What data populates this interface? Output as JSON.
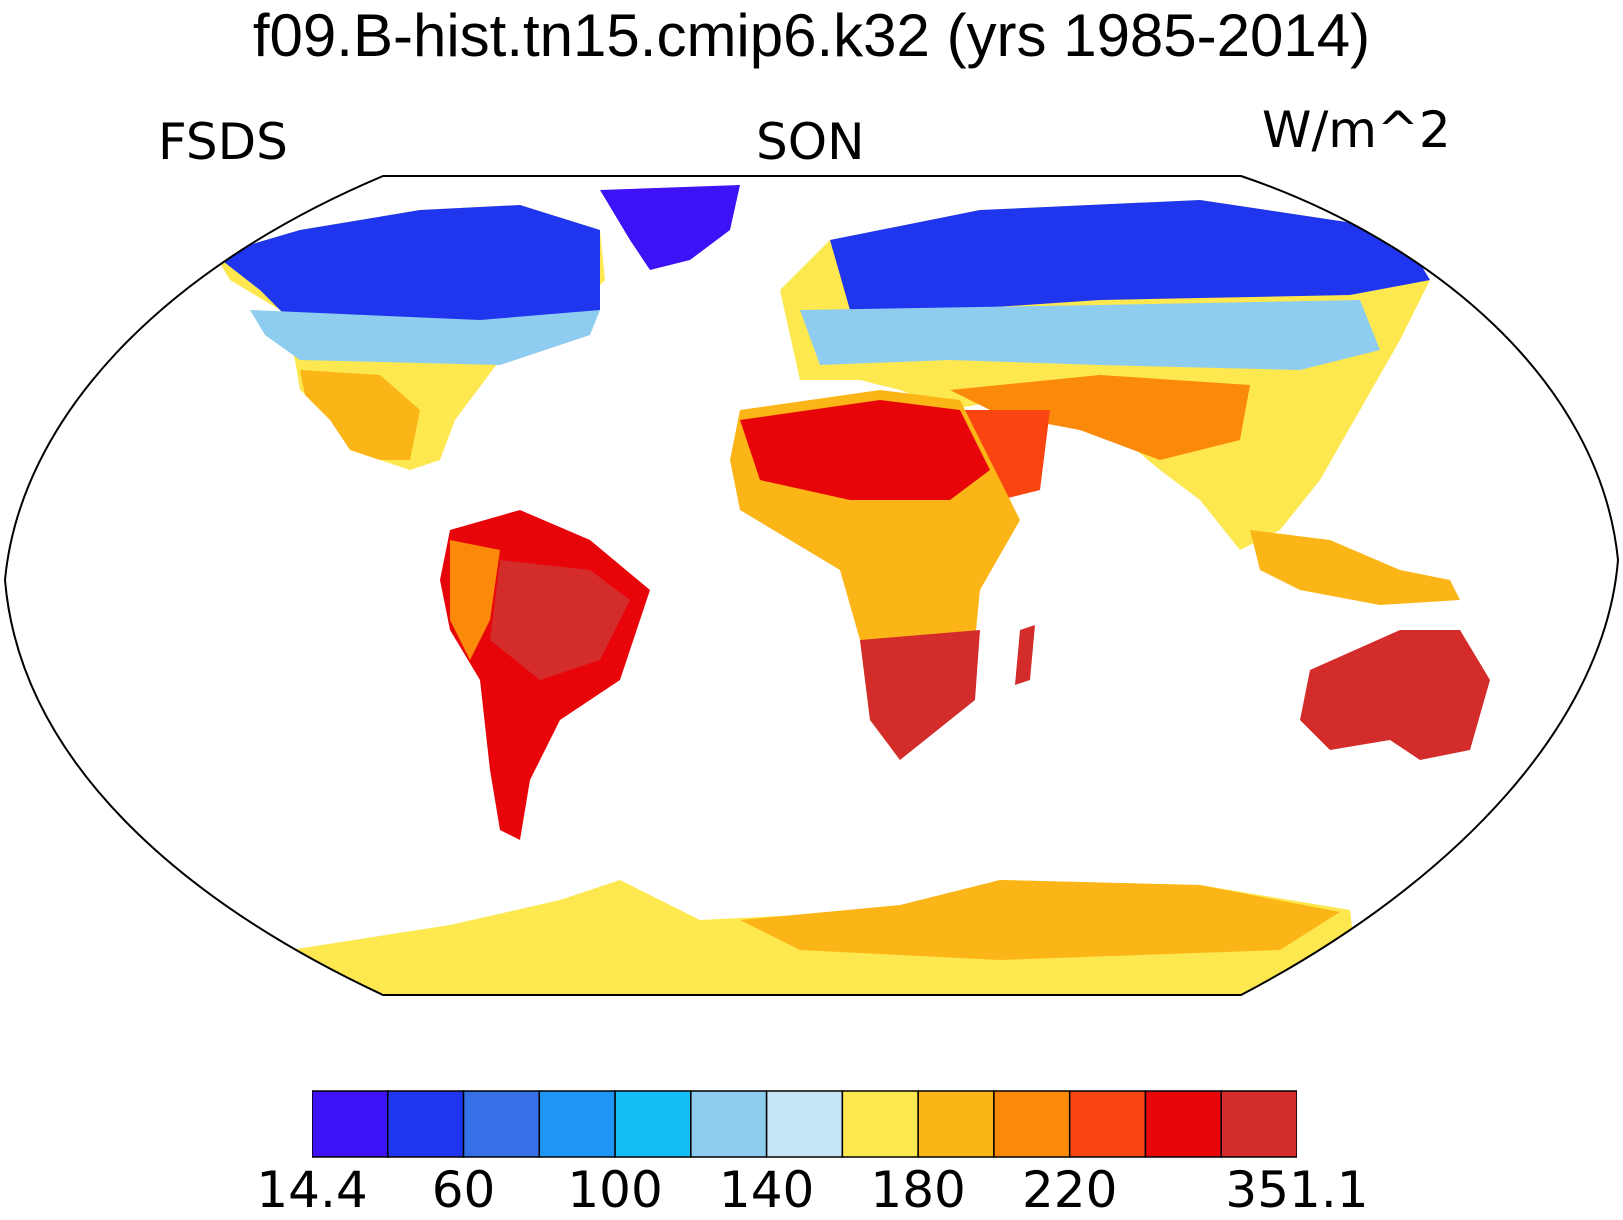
{
  "title": "f09.B-hist.tn15.cmip6.k32 (yrs 1985-2014)",
  "left_label": "FSDS",
  "center_label": "SON",
  "right_label": "W/m^2",
  "colorbar": {
    "colors": [
      "#3e12f7",
      "#1f36ee",
      "#3570e6",
      "#1f95f6",
      "#14bdf6",
      "#8ecdef",
      "#c6e5f6",
      "#fde84f",
      "#fbb517",
      "#fb8a0a",
      "#fb4510",
      "#e8050a",
      "#d42b2b"
    ],
    "tick_labels": [
      "14.4",
      "60",
      "100",
      "140",
      "180",
      "220",
      "351.1"
    ]
  },
  "map": {
    "projection": "Robinson",
    "ocean_color": "#ffffff",
    "land_fill_regions": "continents colored by FSDS value"
  }
}
